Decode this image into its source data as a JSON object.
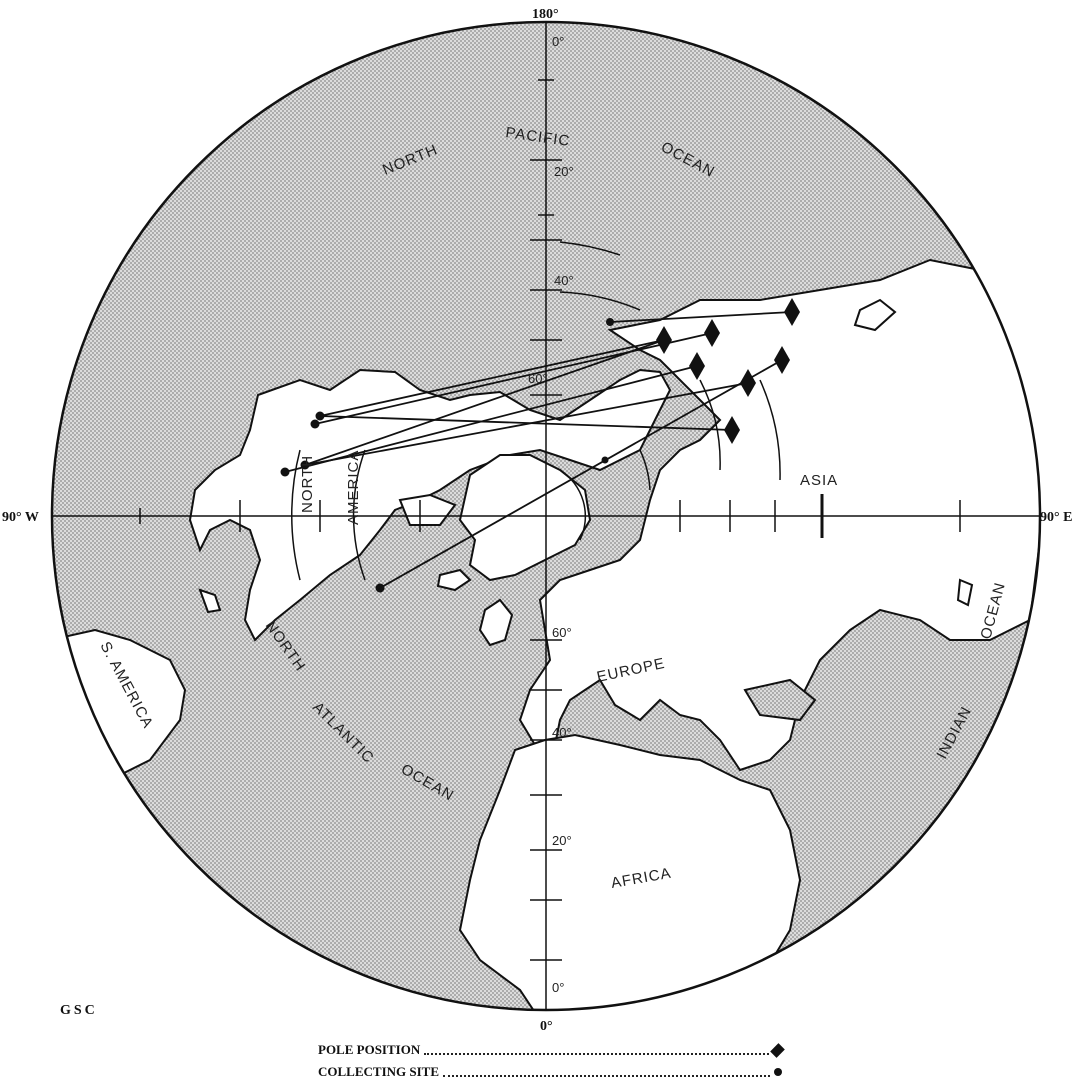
{
  "map": {
    "meridians": {
      "top": "180°",
      "bottom": "0°",
      "left": "90° W",
      "right": "90° E"
    },
    "latitude_labels": {
      "pacific": [
        "0°",
        "20°",
        "40°",
        "60°"
      ],
      "atlantic": [
        "60°",
        "40°",
        "20°",
        "0°"
      ]
    },
    "place_labels": {
      "north_pacific_1": "NORTH",
      "north_pacific_2": "PACIFIC",
      "north_pacific_3": "OCEAN",
      "asia": "ASIA",
      "north_america_1": "NORTH",
      "north_america_2": "AMERICA",
      "europe": "EUROPE",
      "south_america": "S. AMERICA",
      "north_atlantic_1": "NORTH",
      "north_atlantic_2": "ATLANTIC",
      "north_atlantic_3": "OCEAN",
      "indian_1": "INDIAN",
      "indian_2": "OCEAN",
      "africa": "AFRICA"
    }
  },
  "credit": "GSC",
  "legend": {
    "pole_position": "POLE POSITION",
    "collecting_site": "COLLECTING SITE"
  },
  "colors": {
    "ocean_stipple": "#cfcfcf",
    "land": "#ffffff",
    "ink": "#111111"
  }
}
